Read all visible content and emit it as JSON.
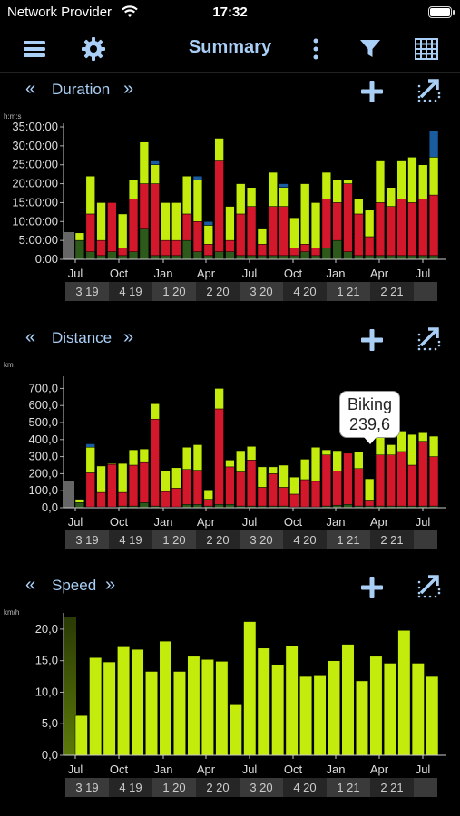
{
  "status_bar": {
    "carrier": "Network Provider",
    "time": "17:32"
  },
  "nav": {
    "title": "Summary"
  },
  "colors": {
    "red": "#d4182c",
    "lime": "#c3ec0c",
    "darkgreen": "#2d5a1b",
    "blue": "#1a5ca0",
    "accent": "#a9cff7"
  },
  "x_axis": {
    "tick_labels": [
      "Jul",
      "Oct",
      "Jan",
      "Apr",
      "Jul",
      "Oct",
      "Jan",
      "Apr",
      "Jul"
    ],
    "quarter_labels": [
      "3 19",
      "4 19",
      "1 20",
      "2 20",
      "3 20",
      "4 20",
      "1 21",
      "2 21"
    ]
  },
  "sections": {
    "duration": {
      "name": "Duration",
      "unit": "h:m:s"
    },
    "distance": {
      "name": "Distance",
      "unit": "km"
    },
    "speed": {
      "name": "Speed",
      "unit": "km/h"
    }
  },
  "tooltip": {
    "title": "Biking",
    "value": "239,6"
  },
  "chart_data": [
    {
      "id": "duration",
      "type": "bar",
      "stacked": true,
      "ylabel": "h:m:s",
      "ylim": [
        0,
        35
      ],
      "ytick_labels": [
        "0:00",
        "5:00:00",
        "10:00:00",
        "15:00:00",
        "20:00:00",
        "25:00:00",
        "30:00:00",
        "35:00:00"
      ],
      "series": [
        {
          "color": "#2d5a1b",
          "values": [
            5,
            2,
            1,
            2,
            1,
            2,
            8,
            1,
            1,
            1,
            5,
            2,
            1,
            2,
            2,
            1,
            1,
            1,
            1,
            1,
            1,
            2,
            1,
            3,
            5,
            2,
            1,
            1,
            1,
            1,
            1,
            1,
            1,
            1
          ]
        },
        {
          "color": "#d4182c",
          "values": [
            0,
            10,
            4,
            13,
            2,
            14,
            12,
            19,
            4,
            4,
            7,
            8,
            3,
            24,
            3,
            11,
            13,
            3,
            13,
            13,
            2,
            2,
            2,
            13,
            10,
            18,
            11,
            5,
            14,
            13,
            15,
            14,
            15,
            16
          ]
        },
        {
          "color": "#c3ec0c",
          "values": [
            2,
            10,
            10,
            0,
            9,
            5,
            11,
            5,
            10,
            10,
            10,
            11,
            5,
            6,
            9,
            8,
            5,
            4,
            9,
            5,
            8,
            16,
            12,
            7,
            6,
            1,
            4,
            7,
            11,
            5,
            10,
            12,
            9,
            10
          ]
        },
        {
          "color": "#1a5ca0",
          "values": [
            0,
            0,
            0,
            0,
            0,
            0,
            0,
            1,
            0,
            0,
            0,
            1,
            1,
            0,
            0,
            0,
            0,
            0,
            0,
            1,
            0,
            0,
            0,
            0,
            0,
            0,
            0,
            0,
            0,
            0,
            0,
            0,
            0,
            7
          ]
        }
      ]
    },
    {
      "id": "distance",
      "type": "bar",
      "stacked": true,
      "ylabel": "km",
      "ylim": [
        0,
        750
      ],
      "ytick_labels": [
        "0,0",
        "100,0",
        "200,0",
        "300,0",
        "400,0",
        "500,0",
        "600,0",
        "700,0"
      ],
      "series": [
        {
          "color": "#2d5a1b",
          "values": [
            30,
            5,
            5,
            5,
            10,
            10,
            30,
            10,
            5,
            5,
            20,
            20,
            10,
            20,
            20,
            10,
            10,
            10,
            10,
            10,
            5,
            5,
            5,
            10,
            15,
            20,
            10,
            10,
            10,
            10,
            10,
            10,
            10,
            10
          ]
        },
        {
          "color": "#d4182c",
          "values": [
            0,
            200,
            85,
            250,
            80,
            240,
            235,
            510,
            90,
            110,
            205,
            200,
            40,
            560,
            220,
            200,
            270,
            110,
            190,
            110,
            75,
            160,
            150,
            300,
            200,
            300,
            220,
            30,
            300,
            300,
            320,
            240,
            380,
            290
          ]
        },
        {
          "color": "#c3ec0c",
          "values": [
            20,
            150,
            155,
            5,
            170,
            90,
            80,
            90,
            120,
            120,
            130,
            150,
            55,
            120,
            40,
            125,
            80,
            120,
            40,
            130,
            100,
            120,
            200,
            30,
            120,
            0,
            100,
            130,
            200,
            60,
            120,
            180,
            50,
            120
          ]
        },
        {
          "color": "#1a5ca0",
          "values": [
            0,
            20,
            0,
            0,
            0,
            0,
            0,
            0,
            0,
            0,
            0,
            0,
            0,
            0,
            0,
            0,
            0,
            0,
            0,
            0,
            0,
            0,
            0,
            0,
            0,
            0,
            0,
            0,
            0,
            0,
            0,
            0,
            0,
            0
          ]
        }
      ]
    },
    {
      "id": "speed",
      "type": "bar",
      "ylabel": "km/h",
      "ylim": [
        0,
        22
      ],
      "ytick_labels": [
        "0,0",
        "5,0",
        "10,0",
        "15,0",
        "20,0"
      ],
      "series": [
        {
          "color": "#c3ec0c",
          "values": [
            6.3,
            15.5,
            14.8,
            17.2,
            16.8,
            13.3,
            18.1,
            13.3,
            15.7,
            15.2,
            14.9,
            8.0,
            21.2,
            17.0,
            14.4,
            17.3,
            12.5,
            12.6,
            15.0,
            17.6,
            11.8,
            15.7,
            14.6,
            19.8,
            14.6,
            12.5
          ]
        }
      ]
    }
  ]
}
